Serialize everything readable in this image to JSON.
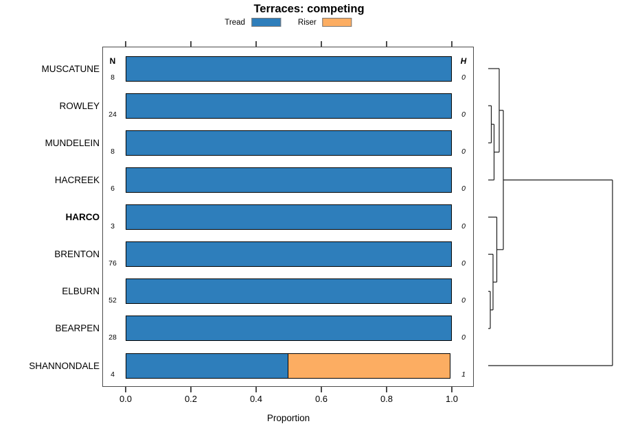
{
  "title": "Terraces: competing",
  "legend": {
    "items": [
      {
        "label": "Tread",
        "color": "#2E7EBB"
      },
      {
        "label": "Riser",
        "color": "#FCAD62"
      }
    ]
  },
  "columns": {
    "n_header": "N",
    "h_header": "H"
  },
  "xaxis": {
    "label": "Proportion",
    "ticks": [
      {
        "label": "0.0",
        "value": 0.0
      },
      {
        "label": "0.2",
        "value": 0.2
      },
      {
        "label": "0.4",
        "value": 0.4
      },
      {
        "label": "0.6",
        "value": 0.6
      },
      {
        "label": "0.8",
        "value": 0.8
      },
      {
        "label": "1.0",
        "value": 1.0
      }
    ]
  },
  "chart_data": {
    "type": "bar",
    "orientation": "horizontal",
    "stacked": true,
    "title": "Terraces: competing",
    "xlabel": "Proportion",
    "xlim": [
      0,
      1
    ],
    "grid": false,
    "legend_position": "top",
    "categories": [
      "MUSCATUNE",
      "ROWLEY",
      "MUNDELEIN",
      "HACREEK",
      "HARCO",
      "BRENTON",
      "ELBURN",
      "BEARPEN",
      "SHANNONDALE"
    ],
    "series": [
      {
        "name": "Tread",
        "color": "#2E7EBB",
        "values": [
          1,
          1,
          1,
          1,
          1,
          1,
          1,
          1,
          0.5
        ]
      },
      {
        "name": "Riser",
        "color": "#FCAD62",
        "values": [
          0,
          0,
          0,
          0,
          0,
          0,
          0,
          0,
          0.5
        ]
      }
    ],
    "row_counts_N": [
      "8",
      "24",
      "8",
      "6",
      "3",
      "76",
      "52",
      "28",
      "4"
    ],
    "row_heterogeneity_H": [
      "0",
      "0",
      "0",
      "0",
      "0",
      "0",
      "0",
      "0",
      "1"
    ],
    "emphasized_rows": [
      "HARCO"
    ]
  },
  "dendrogram": {
    "side": "right",
    "leaves": [
      "MUSCATUNE",
      "ROWLEY",
      "MUNDELEIN",
      "HACREEK",
      "HARCO",
      "BRENTON",
      "ELBURN",
      "BEARPEN",
      "SHANNONDALE"
    ],
    "merges": [
      {
        "id": "m1",
        "children": [
          "ROWLEY",
          "MUNDELEIN"
        ],
        "height": 4.5
      },
      {
        "id": "m2",
        "children": [
          "m1",
          "HACREEK"
        ],
        "height": 8.5
      },
      {
        "id": "m3",
        "children": [
          "MUSCATUNE",
          "m2"
        ],
        "height": 16
      },
      {
        "id": "m4",
        "children": [
          "ELBURN",
          "BEARPEN"
        ],
        "height": 3
      },
      {
        "id": "m5",
        "children": [
          "BRENTON",
          "m4"
        ],
        "height": 7
      },
      {
        "id": "m6",
        "children": [
          "HARCO",
          "m5"
        ],
        "height": 12.5
      },
      {
        "id": "m7",
        "children": [
          "m3",
          "m6"
        ],
        "height": 22
      },
      {
        "id": "m8",
        "children": [
          "m7",
          "SHANNONDALE"
        ],
        "height": 181
      }
    ]
  }
}
